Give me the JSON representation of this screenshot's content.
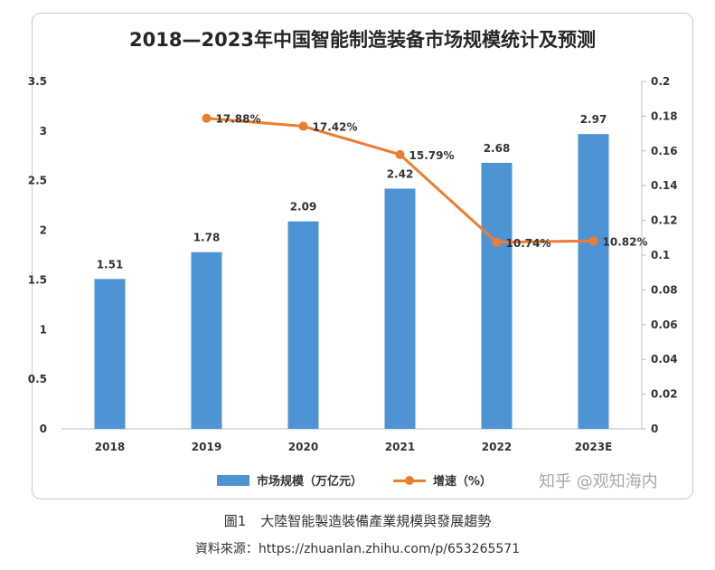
{
  "chart_data": {
    "type": "bar+line",
    "title": "2018—2023年中国智能制造装备市场规模统计及预测",
    "categories": [
      "2018",
      "2019",
      "2020",
      "2021",
      "2022",
      "2023E"
    ],
    "series": [
      {
        "name": "市场规模（万亿元）",
        "type": "bar",
        "axis": "left",
        "values": [
          1.51,
          1.78,
          2.09,
          2.42,
          2.68,
          2.97
        ],
        "labels": [
          "1.51",
          "1.78",
          "2.09",
          "2.42",
          "2.68",
          "2.97"
        ]
      },
      {
        "name": "增速（%）",
        "type": "line",
        "axis": "right",
        "values": [
          null,
          0.1788,
          0.1742,
          0.1579,
          0.1074,
          0.1082
        ],
        "labels": [
          "",
          "17.88%",
          "17.42%",
          "15.79%",
          "10.74%",
          "10.82%"
        ]
      }
    ],
    "y_left": {
      "range": [
        0,
        3.5
      ],
      "ticks": [
        "0",
        "0.5",
        "1",
        "1.5",
        "2",
        "2.5",
        "3",
        "3.5"
      ]
    },
    "y_right": {
      "range": [
        0,
        0.2
      ],
      "ticks": [
        "0",
        "0.02",
        "0.04",
        "0.06",
        "0.08",
        "0.1",
        "0.12",
        "0.14",
        "0.16",
        "0.18",
        "0.2"
      ]
    },
    "grid": false,
    "legend_position": "bottom",
    "colors": {
      "bar": "#4e93d3",
      "line": "#ed7d31"
    }
  },
  "source_mark": "知乎 @观知海内",
  "caption": {
    "number": "圖1",
    "text": "大陸智能製造裝備產業規模與發展趨勢"
  },
  "source_line": "資料來源：https://zhuanlan.zhihu.com/p/653265571"
}
